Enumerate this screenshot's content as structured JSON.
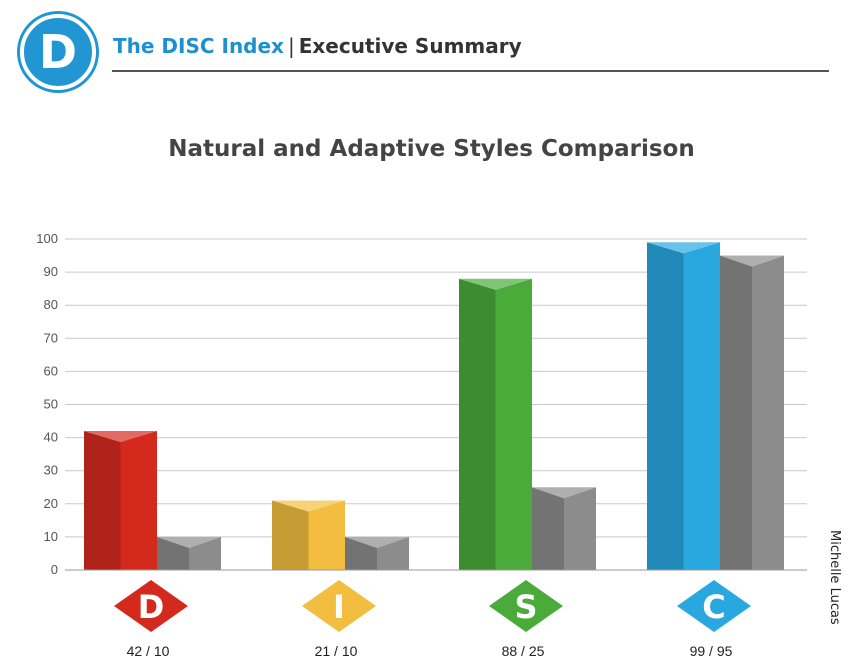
{
  "header": {
    "logo_letter": "D",
    "brand": "The DISC Index",
    "separator": "|",
    "section": "Executive Summary"
  },
  "side_label": "Michelle Lucas",
  "colors": {
    "D": "#d42a1e",
    "I": "#f3be3f",
    "S": "#4aab3a",
    "C": "#29a8e0",
    "adaptive": "#8c8c8c",
    "brand": "#1e90d0"
  },
  "chart_data": {
    "type": "bar",
    "title": "Natural and Adaptive Styles Comparison",
    "categories": [
      "D",
      "I",
      "S",
      "C"
    ],
    "series": [
      {
        "values": [
          42,
          21,
          88,
          99
        ]
      },
      {
        "values": [
          10,
          10,
          25,
          95
        ]
      }
    ],
    "value_labels": [
      "42 / 10",
      "21 / 10",
      "88 / 25",
      "99 / 95"
    ],
    "ylim": [
      0,
      100
    ],
    "yticks": [
      0,
      10,
      20,
      30,
      40,
      50,
      60,
      70,
      80,
      90,
      100
    ],
    "grid": true
  }
}
